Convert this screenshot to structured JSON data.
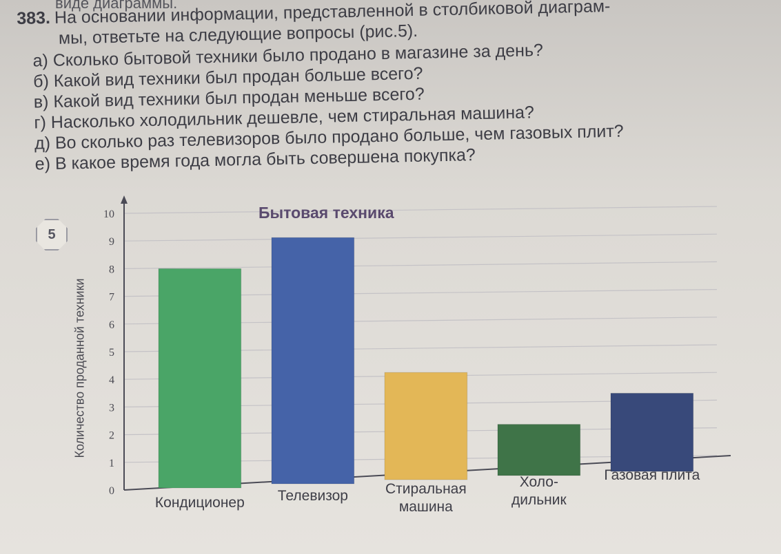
{
  "header_fragment": "виде диаграммы.",
  "problem": {
    "number": "383.",
    "statement_line1": "На основании информации, представленной в столбиковой диаграм-",
    "statement_line2": "мы, ответьте на следующие вопросы (рис.5).",
    "questions": [
      "а) Сколько бытовой техники было продано в магазине за день?",
      "б) Какой вид техники был продан больше всего?",
      "в) Какой вид техники был продан меньше всего?",
      "г) Насколько холодильник дешевле, чем стиральная машина?",
      "д) Во сколько раз телевизоров было продано больше, чем газовых плит?",
      "е) В какое время года могла быть совершена покупка?"
    ]
  },
  "figure_number": "5",
  "chart_data": {
    "type": "bar",
    "title": "Бытовая техника",
    "ylabel": "Количество проданной техники",
    "xlabel": "",
    "ylim": [
      0,
      10
    ],
    "yticks": [
      "0",
      "1",
      "2",
      "3",
      "4",
      "5",
      "6",
      "7",
      "8",
      "9",
      "10"
    ],
    "grid": true,
    "categories": [
      [
        "Кондиционер"
      ],
      [
        "Телевизор"
      ],
      [
        "Стиральная",
        "машина"
      ],
      [
        "Холо-",
        "дильник"
      ],
      [
        "Газовая плита"
      ]
    ],
    "values": [
      8,
      9,
      4,
      2,
      3
    ],
    "colors": [
      "#4aa567",
      "#4563a8",
      "#e3b757",
      "#3f7448",
      "#38497a"
    ]
  }
}
